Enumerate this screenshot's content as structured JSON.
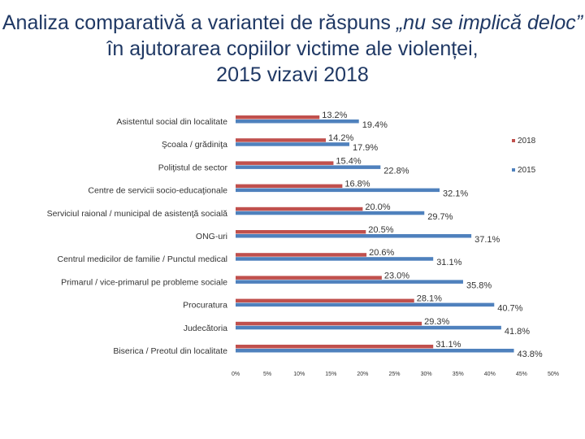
{
  "title": {
    "part1": "Analiza comparativă a variantei de răspuns ",
    "part2": "„nu se implică deloc”",
    "part3": " în ajutorarea copiilor victime ale violenței,",
    "line3": "2015 vizavi 2018"
  },
  "colors": {
    "s2018": "#c0504d",
    "s2015": "#4f81bd"
  },
  "chart_data": {
    "type": "bar",
    "orientation": "horizontal",
    "categories": [
      "Asistentul social din localitate",
      "Şcoala / grădiniţa",
      "Poliţistul de sector",
      "Centre de servicii socio-educaţionale",
      "Serviciul raional / municipal de asistenţă socială",
      "ONG-uri",
      "Centrul medicilor de familie / Punctul medical",
      "Primarul / vice-primarul pe probleme sociale",
      "Procuratura",
      "Judecătoria",
      "Biserica / Preotul din localitate"
    ],
    "series": [
      {
        "name": "2018",
        "values": [
          13.2,
          14.2,
          15.4,
          16.8,
          20.0,
          20.5,
          20.6,
          23.0,
          28.1,
          29.3,
          31.1
        ],
        "labels": [
          "13.2%",
          "14.2%",
          "15.4%",
          "16.8%",
          "20.0%",
          "20.5%",
          "20.6%",
          "23.0%",
          "28.1%",
          "29.3%",
          "31.1%"
        ]
      },
      {
        "name": "2015",
        "values": [
          19.4,
          17.9,
          22.8,
          32.1,
          29.7,
          37.1,
          31.1,
          35.8,
          40.7,
          41.8,
          43.8
        ],
        "labels": [
          "19.4%",
          "17.9%",
          "22.8%",
          "32.1%",
          "29.7%",
          "37.1%",
          "31.1%",
          "35.8%",
          "40.7%",
          "41.8%",
          "43.8%"
        ]
      }
    ],
    "xlim": [
      0,
      50
    ],
    "ticks": [
      {
        "v": 0,
        "label": "0%"
      },
      {
        "v": 5,
        "label": "5%"
      },
      {
        "v": 10,
        "label": "10%"
      },
      {
        "v": 15,
        "label": "15%"
      },
      {
        "v": 20,
        "label": "20%"
      },
      {
        "v": 25,
        "label": "25%"
      },
      {
        "v": 30,
        "label": "30%"
      },
      {
        "v": 35,
        "label": "35%"
      },
      {
        "v": 40,
        "label": "40%"
      },
      {
        "v": 45,
        "label": "45%"
      },
      {
        "v": 50,
        "label": "50%"
      }
    ],
    "grid": false,
    "legend": "right"
  }
}
